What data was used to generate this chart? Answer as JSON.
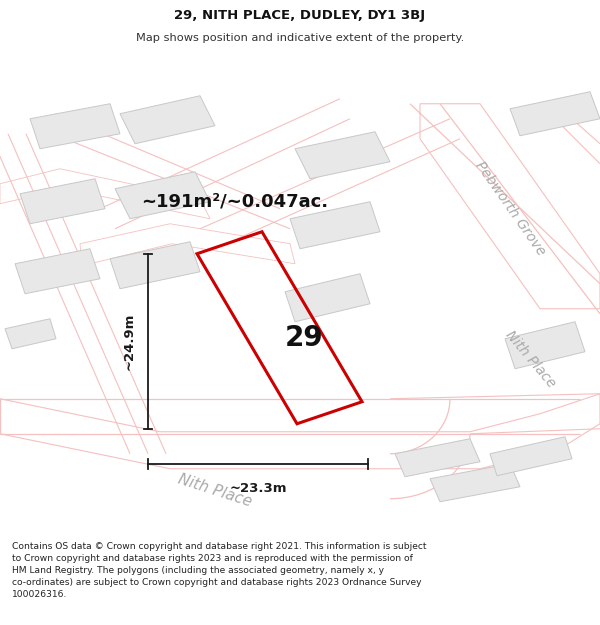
{
  "title_line1": "29, NITH PLACE, DUDLEY, DY1 3BJ",
  "title_line2": "Map shows position and indicative extent of the property.",
  "footer_text": "Contains OS data © Crown copyright and database right 2021. This information is subject to Crown copyright and database rights 2023 and is reproduced with the permission of HM Land Registry. The polygons (including the associated geometry, namely x, y co-ordinates) are subject to Crown copyright and database rights 2023 Ordnance Survey 100026316.",
  "area_label": "~191m²/~0.047ac.",
  "number_label": "29",
  "dim_width": "~23.3m",
  "dim_height": "~24.9m",
  "street_bottom": "Nith Place",
  "street_right": "Nith Place",
  "street_top_right": "Pebworth Grove",
  "bg_color": "#ffffff",
  "map_bg": "#ffffff",
  "road_stroke": "#f5c0c0",
  "building_fill": "#e8e8e8",
  "building_stroke": "#c8c8c8",
  "plot_stroke": "#cc0000",
  "dim_color": "#1a1a1a",
  "street_label_color": "#aaaaaa"
}
